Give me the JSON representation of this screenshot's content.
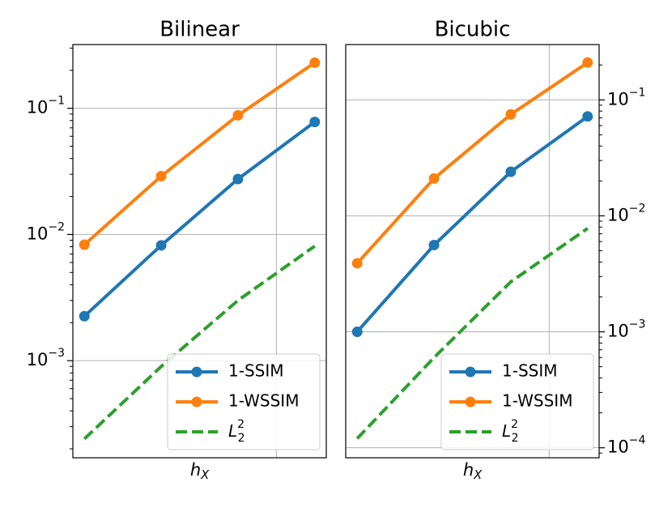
{
  "chart_data": [
    {
      "type": "line",
      "title": "Bilinear",
      "xlabel": "h_X",
      "ylabel": "",
      "yscale": "log",
      "ylim": [
        0.00017,
        0.32
      ],
      "ytick_labels": [
        "10^-3",
        "10^-2",
        "10^-1"
      ],
      "grid": true,
      "legend_position": "lower-right",
      "x": [
        1,
        2,
        3,
        4
      ],
      "series": [
        {
          "name": "1-SSIM",
          "color": "#1f77b4",
          "style": "solid-marker",
          "values": [
            0.00225,
            0.0082,
            0.0275,
            0.078
          ]
        },
        {
          "name": "1-WSSIM",
          "color": "#ff7f0e",
          "style": "solid-marker",
          "values": [
            0.0083,
            0.029,
            0.088,
            0.23
          ]
        },
        {
          "name": "L_2^2",
          "color": "#2ca02c",
          "style": "dashed",
          "values": [
            0.00024,
            0.0009,
            0.003,
            0.0081
          ]
        }
      ]
    },
    {
      "type": "line",
      "title": "Bicubic",
      "xlabel": "h_X",
      "ylabel": "",
      "yscale": "log",
      "ylim": [
        8.2e-05,
        0.3
      ],
      "ytick_labels": [
        "10^-4",
        "10^-3",
        "10^-2",
        "10^-1"
      ],
      "grid": true,
      "legend_position": "lower-right",
      "x": [
        1,
        2,
        3,
        4
      ],
      "series": [
        {
          "name": "1-SSIM",
          "color": "#1f77b4",
          "style": "solid-marker",
          "values": [
            0.001,
            0.0056,
            0.024,
            0.072
          ]
        },
        {
          "name": "1-WSSIM",
          "color": "#ff7f0e",
          "style": "solid-marker",
          "values": [
            0.0039,
            0.021,
            0.075,
            0.21
          ]
        },
        {
          "name": "L_2^2",
          "color": "#2ca02c",
          "style": "dashed",
          "values": [
            0.00012,
            0.0006,
            0.0027,
            0.0078
          ]
        }
      ]
    }
  ]
}
